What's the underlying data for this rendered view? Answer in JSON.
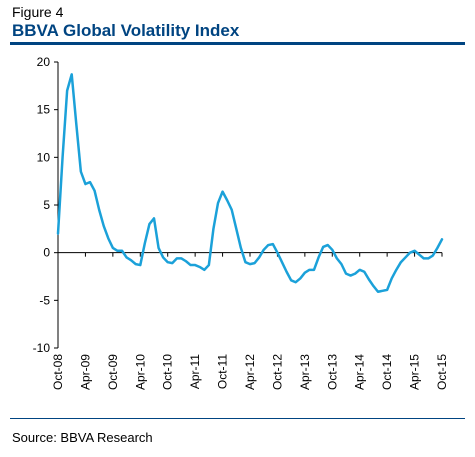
{
  "figure": {
    "label": "Figure 4",
    "title": "BBVA Global Volatility Index",
    "source": "Source: BBVA Research"
  },
  "chart_data": {
    "type": "line",
    "title": "BBVA Global Volatility Index",
    "xlabel": "",
    "ylabel": "",
    "ylim": [
      -10,
      20
    ],
    "yticks": [
      -10,
      -5,
      0,
      5,
      10,
      15,
      20
    ],
    "xlim": [
      "2008-10",
      "2015-10"
    ],
    "xtick_labels": [
      "Oct-08",
      "Apr-09",
      "Oct-09",
      "Apr-10",
      "Oct-10",
      "Apr-11",
      "Oct-11",
      "Apr-12",
      "Oct-12",
      "Apr-13",
      "Oct-13",
      "Apr-14",
      "Oct-14",
      "Apr-15",
      "Oct-15"
    ],
    "grid": false,
    "legend": "none",
    "line_color": "#1BA1D9",
    "series": [
      {
        "x": [
          "2008-10",
          "2008-11",
          "2008-12",
          "2009-01",
          "2009-02",
          "2009-03",
          "2009-04",
          "2009-05",
          "2009-06",
          "2009-07",
          "2009-08",
          "2009-09",
          "2009-10",
          "2009-11",
          "2009-12",
          "2010-01",
          "2010-02",
          "2010-03",
          "2010-04",
          "2010-05",
          "2010-06",
          "2010-07",
          "2010-08",
          "2010-09",
          "2010-10",
          "2010-11",
          "2010-12",
          "2011-01",
          "2011-02",
          "2011-03",
          "2011-04",
          "2011-05",
          "2011-06",
          "2011-07",
          "2011-08",
          "2011-09",
          "2011-10",
          "2011-11",
          "2011-12",
          "2012-01",
          "2012-02",
          "2012-03",
          "2012-04",
          "2012-05",
          "2012-06",
          "2012-07",
          "2012-08",
          "2012-09",
          "2012-10",
          "2012-11",
          "2012-12",
          "2013-01",
          "2013-02",
          "2013-03",
          "2013-04",
          "2013-05",
          "2013-06",
          "2013-07",
          "2013-08",
          "2013-09",
          "2013-10",
          "2013-11",
          "2013-12",
          "2014-01",
          "2014-02",
          "2014-03",
          "2014-04",
          "2014-05",
          "2014-06",
          "2014-07",
          "2014-08",
          "2014-09",
          "2014-10",
          "2014-11",
          "2014-12",
          "2015-01",
          "2015-02",
          "2015-03",
          "2015-04",
          "2015-05",
          "2015-06",
          "2015-07",
          "2015-08",
          "2015-09",
          "2015-10"
        ],
        "y": [
          2.0,
          10.0,
          17.0,
          18.7,
          13.5,
          8.5,
          7.2,
          7.4,
          6.5,
          4.5,
          2.8,
          1.5,
          0.5,
          0.2,
          0.2,
          -0.5,
          -0.8,
          -1.2,
          -1.3,
          1.0,
          3.0,
          3.6,
          0.5,
          -0.5,
          -1.0,
          -1.1,
          -0.6,
          -0.6,
          -0.9,
          -1.3,
          -1.3,
          -1.5,
          -1.8,
          -1.3,
          2.5,
          5.2,
          6.4,
          5.5,
          4.5,
          2.5,
          0.5,
          -1.0,
          -1.2,
          -1.1,
          -0.5,
          0.3,
          0.8,
          0.9,
          0.0,
          -1.0,
          -2.0,
          -2.9,
          -3.1,
          -2.7,
          -2.1,
          -1.8,
          -1.8,
          -0.5,
          0.6,
          0.8,
          0.3,
          -0.6,
          -1.2,
          -2.2,
          -2.4,
          -2.2,
          -1.8,
          -2.0,
          -2.8,
          -3.5,
          -4.1,
          -4.0,
          -3.9,
          -2.7,
          -1.8,
          -1.0,
          -0.5,
          0.0,
          0.2,
          -0.2,
          -0.6,
          -0.6,
          -0.3,
          0.5,
          1.4
        ]
      }
    ]
  }
}
